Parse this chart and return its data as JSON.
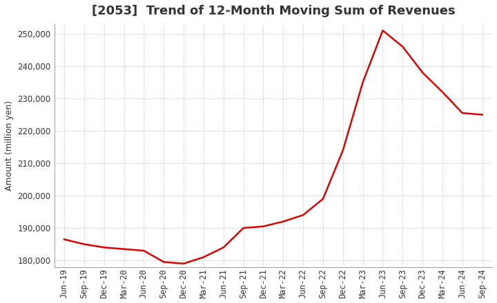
{
  "title": "[2053]  Trend of 12-Month Moving Sum of Revenues",
  "ylabel": "Amount (million yen)",
  "line_color": "#DD0000",
  "line_width": 1.8,
  "background_color": "#FFFFFF",
  "grid_color": "#999999",
  "ylim": [
    178000,
    253000
  ],
  "yticks": [
    180000,
    190000,
    200000,
    210000,
    220000,
    230000,
    240000,
    250000
  ],
  "x_labels": [
    "Jun-19",
    "Sep-19",
    "Dec-19",
    "Mar-20",
    "Jun-20",
    "Sep-20",
    "Dec-20",
    "Mar-21",
    "Jun-21",
    "Sep-21",
    "Dec-21",
    "Mar-22",
    "Jun-22",
    "Sep-22",
    "Dec-22",
    "Mar-23",
    "Jun-23",
    "Sep-23",
    "Dec-23",
    "Mar-24",
    "Jun-24",
    "Sep-24"
  ],
  "values": [
    186500,
    185000,
    184000,
    183500,
    183000,
    179500,
    179000,
    181000,
    184000,
    190000,
    190500,
    192000,
    194000,
    199000,
    214000,
    235000,
    251000,
    246000,
    238000,
    232000,
    225500,
    225000
  ],
  "title_color": "#333333",
  "tick_color": "#333333",
  "title_fontsize": 13,
  "ylabel_fontsize": 9,
  "tick_fontsize": 8.5
}
